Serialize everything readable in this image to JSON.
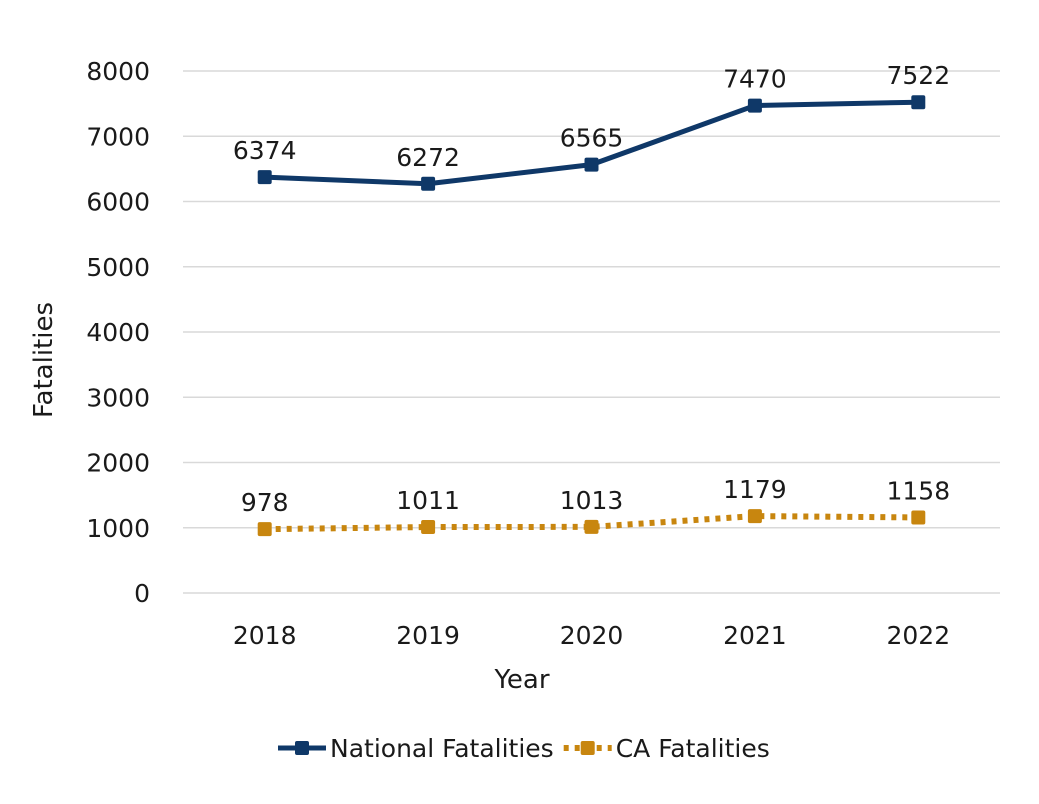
{
  "chart_data": {
    "type": "line",
    "title": "",
    "xlabel": "Year",
    "ylabel": "Fatalities",
    "categories": [
      "2018",
      "2019",
      "2020",
      "2021",
      "2022"
    ],
    "ylim": [
      0,
      8000
    ],
    "yticks": [
      "0",
      "1000",
      "2000",
      "3000",
      "4000",
      "5000",
      "6000",
      "7000",
      "8000"
    ],
    "grid": true,
    "legend_position": "bottom",
    "series": [
      {
        "name": "National Fatalities",
        "values": [
          6374,
          6272,
          6565,
          7470,
          7522
        ],
        "color": "#0f3868",
        "style": "solid",
        "marker": "square"
      },
      {
        "name": "CA Fatalities",
        "values": [
          978,
          1011,
          1013,
          1179,
          1158
        ],
        "color": "#c8860f",
        "style": "dotted",
        "marker": "square"
      }
    ]
  }
}
